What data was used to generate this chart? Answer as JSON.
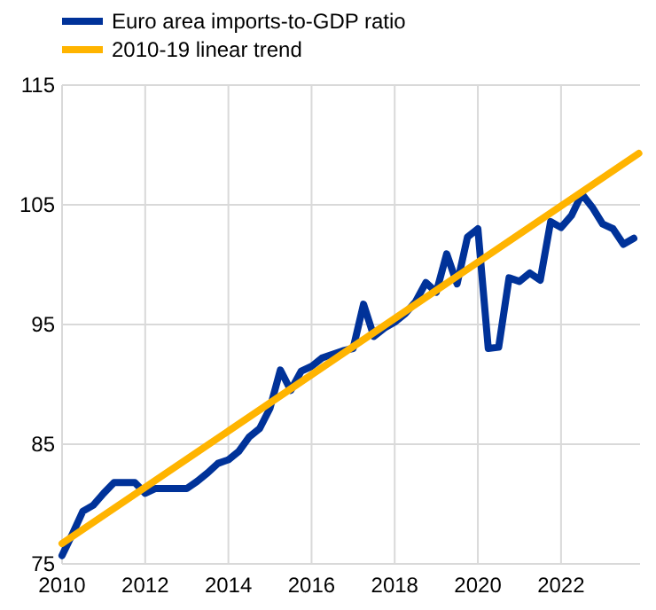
{
  "chart_data": {
    "type": "line",
    "legend": "top left",
    "grid": true,
    "line_style": "solid",
    "xlim": [
      2010,
      2023.9
    ],
    "xticks": [
      2010,
      2012,
      2014,
      2016,
      2018,
      2020,
      2022
    ],
    "ylim": [
      75,
      115
    ],
    "yticks": [
      75,
      85,
      95,
      105,
      115
    ],
    "series": [
      {
        "name": "Euro area imports-to-GDP ratio",
        "color": "#003299",
        "x": [
          2010,
          2010.25,
          2010.5,
          2010.75,
          2011,
          2011.25,
          2011.5,
          2011.75,
          2012,
          2012.25,
          2012.5,
          2012.75,
          2013,
          2013.25,
          2013.5,
          2013.75,
          2014,
          2014.25,
          2014.5,
          2014.75,
          2015,
          2015.25,
          2015.5,
          2015.75,
          2016,
          2016.25,
          2016.5,
          2016.75,
          2017,
          2017.25,
          2017.5,
          2017.75,
          2018,
          2018.25,
          2018.5,
          2018.75,
          2019,
          2019.25,
          2019.5,
          2019.75,
          2020,
          2020.25,
          2020.5,
          2020.75,
          2021,
          2021.25,
          2021.5,
          2021.75,
          2022,
          2022.25,
          2022.5,
          2022.75,
          2023,
          2023.25,
          2023.5,
          2023.75
        ],
        "values": [
          75.7,
          77.5,
          79.4,
          79.9,
          80.9,
          81.8,
          81.8,
          81.8,
          80.9,
          81.3,
          81.3,
          81.3,
          81.3,
          81.9,
          82.6,
          83.4,
          83.7,
          84.4,
          85.6,
          86.3,
          88.0,
          91.2,
          89.5,
          91.1,
          91.5,
          92.2,
          92.5,
          92.8,
          93.0,
          96.7,
          94.0,
          94.7,
          95.2,
          95.9,
          96.9,
          98.5,
          97.7,
          100.9,
          98.4,
          102.3,
          103.0,
          93.0,
          93.1,
          98.9,
          98.6,
          99.3,
          98.7,
          103.6,
          103.1,
          104.1,
          105.9,
          104.8,
          103.4,
          103.0,
          101.7,
          102.2
        ]
      },
      {
        "name": "2010-19 linear trend",
        "color": "#ffb400",
        "x": [
          2010,
          2023.87
        ],
        "values": [
          76.7,
          109.3
        ]
      }
    ]
  }
}
